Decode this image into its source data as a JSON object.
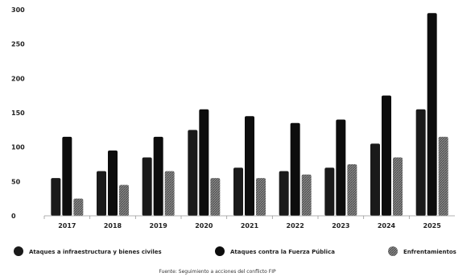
{
  "chart_data": {
    "type": "bar",
    "categories": [
      "2017",
      "2018",
      "2019",
      "2020",
      "2021",
      "2022",
      "2023",
      "2024",
      "2025"
    ],
    "series": [
      {
        "name": "Ataques a infraestructura y bienes civiles",
        "values": [
          55,
          65,
          85,
          125,
          70,
          65,
          70,
          105,
          155
        ],
        "color": "#1a1a1a"
      },
      {
        "name": "Ataques contra la Fuerza Pública",
        "values": [
          115,
          95,
          115,
          155,
          145,
          135,
          140,
          175,
          295
        ],
        "color": "#0d0d0d"
      },
      {
        "name": "Enfrentamientos",
        "values": [
          25,
          45,
          65,
          55,
          55,
          60,
          75,
          85,
          115
        ],
        "color": "#6e6e6e"
      }
    ],
    "y_ticks": [
      "0",
      "50",
      "100",
      "150",
      "200",
      "250",
      "300"
    ],
    "ylim": [
      0,
      300
    ],
    "legend_position": "bottom",
    "grid": false,
    "source": "Fuente: Seguimiento a acciones del conflicto FIP"
  }
}
